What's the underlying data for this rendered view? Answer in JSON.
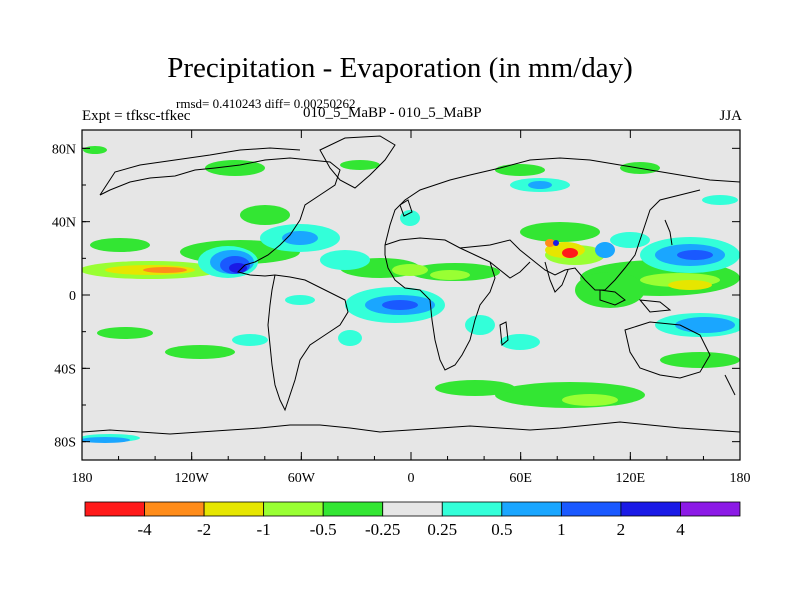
{
  "title": "Precipitation - Evaporation (in mm/day)",
  "stats": "rmsd= 0.410243 diff= 0.00250262",
  "experiment": "Expt = tfksc-tfkec",
  "subtitle": "010_5_MaBP - 010_5_MaBP",
  "season": "JJA",
  "map": {
    "projection": "cylindrical equidistant",
    "lon_range": [
      -180,
      180
    ],
    "lat_range": [
      -90,
      90
    ],
    "background_color": "#e6e6e6",
    "x_ticks": [
      {
        "lon": -180,
        "label": "180"
      },
      {
        "lon": -120,
        "label": "120W"
      },
      {
        "lon": -60,
        "label": "60W"
      },
      {
        "lon": 0,
        "label": "0"
      },
      {
        "lon": 60,
        "label": "60E"
      },
      {
        "lon": 120,
        "label": "120E"
      },
      {
        "lon": 180,
        "label": "180"
      }
    ],
    "y_ticks": [
      {
        "lat": 80,
        "label": "80N"
      },
      {
        "lat": 40,
        "label": "40N"
      },
      {
        "lat": 0,
        "label": "0"
      },
      {
        "lat": -40,
        "label": "40S"
      },
      {
        "lat": -80,
        "label": "80S"
      }
    ]
  },
  "colorbar": {
    "labels": [
      "-4",
      "-2",
      "-1",
      "-0.5",
      "-0.25",
      "0.25",
      "0.5",
      "1",
      "2",
      "4"
    ],
    "colors": [
      "#ff1a1a",
      "#ff8c1a",
      "#e6e600",
      "#99ff33",
      "#33e633",
      "#e6e6e6",
      "#33ffd9",
      "#1aa6ff",
      "#1a59ff",
      "#1a1ae6",
      "#8c1ae6"
    ]
  }
}
